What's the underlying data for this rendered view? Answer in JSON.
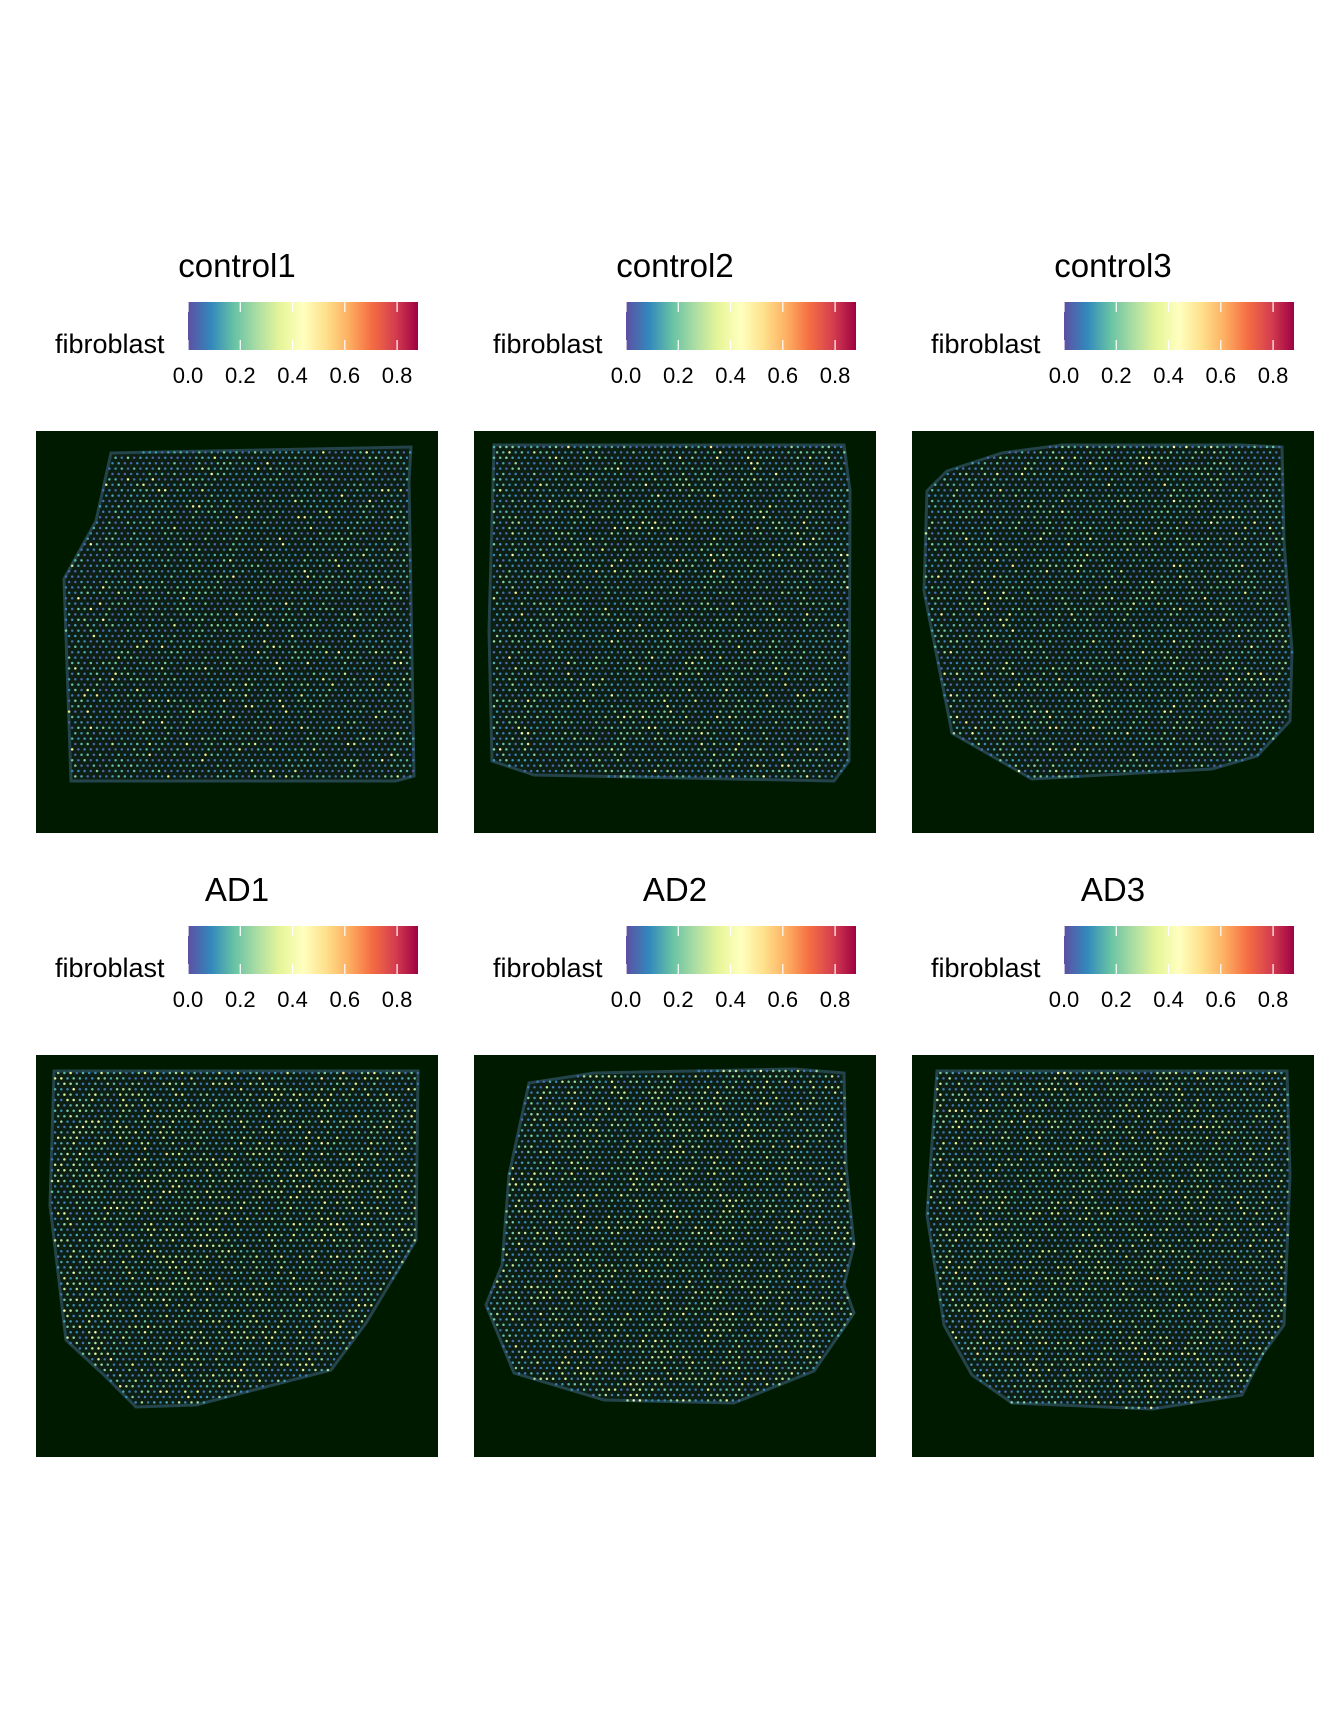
{
  "chart_data": {
    "type": "spatial-scatter",
    "colorbar": {
      "label": "fibroblast",
      "ticks": [
        "0.0",
        "0.2",
        "0.4",
        "0.6",
        "0.8"
      ],
      "tick_values": [
        0.0,
        0.2,
        0.4,
        0.6,
        0.8
      ],
      "range": [
        0.0,
        0.88
      ],
      "palette": [
        "#5E4FA2",
        "#3288BD",
        "#66C2A5",
        "#ABDDA4",
        "#E6F598",
        "#FFFFBF",
        "#FEE08B",
        "#FDAE61",
        "#F46D43",
        "#D53E4F",
        "#9E0142"
      ]
    },
    "tissue_background": "#001A00",
    "panels": [
      {
        "title": "control1",
        "mean_value": 0.12
      },
      {
        "title": "control2",
        "mean_value": 0.14
      },
      {
        "title": "control3",
        "mean_value": 0.14
      },
      {
        "title": "AD1",
        "mean_value": 0.2
      },
      {
        "title": "AD2",
        "mean_value": 0.19
      },
      {
        "title": "AD3",
        "mean_value": 0.19
      }
    ]
  }
}
